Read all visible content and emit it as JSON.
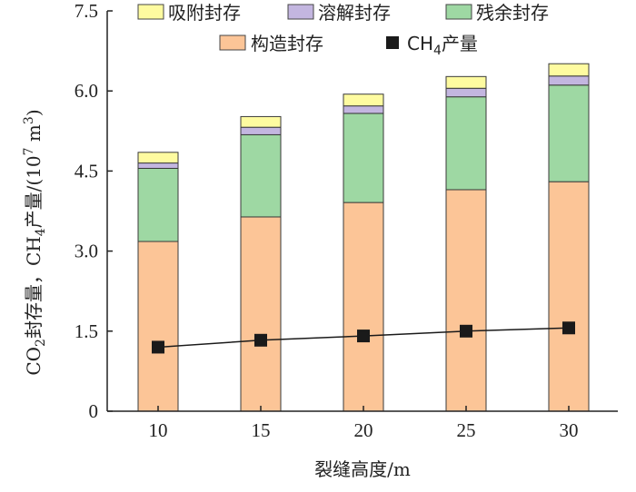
{
  "chart_data": {
    "type": "bar",
    "stacked": true,
    "categories": [
      "10",
      "15",
      "20",
      "25",
      "30"
    ],
    "series": [
      {
        "name": "构造封存",
        "color": "#fcc597",
        "values": [
          3.18,
          3.64,
          3.91,
          4.15,
          4.3
        ]
      },
      {
        "name": "残余封存",
        "color": "#9ed8a3",
        "values": [
          1.37,
          1.54,
          1.67,
          1.74,
          1.81
        ]
      },
      {
        "name": "溶解封存",
        "color": "#c3b6e0",
        "values": [
          0.1,
          0.14,
          0.14,
          0.16,
          0.17
        ]
      },
      {
        "name": "吸附封存",
        "color": "#fefba0",
        "values": [
          0.2,
          0.2,
          0.22,
          0.22,
          0.23
        ]
      }
    ],
    "line_series": {
      "name": "CH",
      "name_sub": "4",
      "name_suffix": "产量",
      "color": "#1a1a1a",
      "values": [
        1.2,
        1.33,
        1.41,
        1.5,
        1.56
      ]
    },
    "xlabel": "裂缝高度/m",
    "ylabel": {
      "p1": "CO",
      "p1_sub": "2",
      "p2": "封存量，CH",
      "p2_sub": "4",
      "p3": "产量/(10",
      "p3_sup": "7",
      "p4": " m",
      "p4_sup": "3",
      "p5": ")"
    },
    "yticks": [
      "0",
      "1.5",
      "3.0",
      "4.5",
      "6.0",
      "7.5"
    ],
    "ytick_values": [
      0,
      1.5,
      3.0,
      4.5,
      6.0,
      7.5
    ],
    "ylim": [
      0,
      7.5
    ],
    "grid": false,
    "legend_placement": "top"
  }
}
